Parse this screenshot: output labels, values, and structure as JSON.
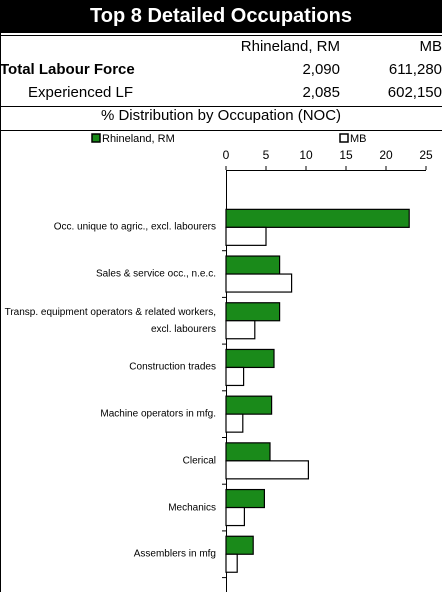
{
  "header": {
    "title": "Top 8 Detailed Occupations",
    "columns": [
      "Rhineland, RM",
      "MB"
    ],
    "rows": [
      {
        "label": "Total Labour Force",
        "values": [
          "2,090",
          "611,280"
        ]
      },
      {
        "label": "Experienced LF",
        "values": [
          "2,085",
          "602,150"
        ]
      }
    ],
    "subtitle": "% Distribution by Occupation (NOC)"
  },
  "chart_data": {
    "type": "bar",
    "orientation": "horizontal",
    "categories": [
      "Occ. unique to agric., excl. labourers",
      "Sales & service occ., n.e.c.",
      "Transp. equipment operators & related workers, excl. labourers",
      "Construction trades",
      "Machine operators in mfg.",
      "Clerical",
      "Mechanics",
      "Assemblers in mfg"
    ],
    "series": [
      {
        "name": "Rhineland, RM",
        "color": "#1a8a1a",
        "values": [
          22.9,
          6.7,
          6.7,
          6.0,
          5.7,
          5.5,
          4.8,
          3.4
        ]
      },
      {
        "name": "MB",
        "color": "#ffffff",
        "values": [
          5.0,
          8.2,
          3.6,
          2.2,
          2.1,
          10.3,
          2.3,
          1.4
        ]
      }
    ],
    "xlim": [
      0,
      25
    ],
    "xticks": [
      0,
      5,
      10,
      15,
      20,
      25
    ],
    "legend": "top"
  }
}
